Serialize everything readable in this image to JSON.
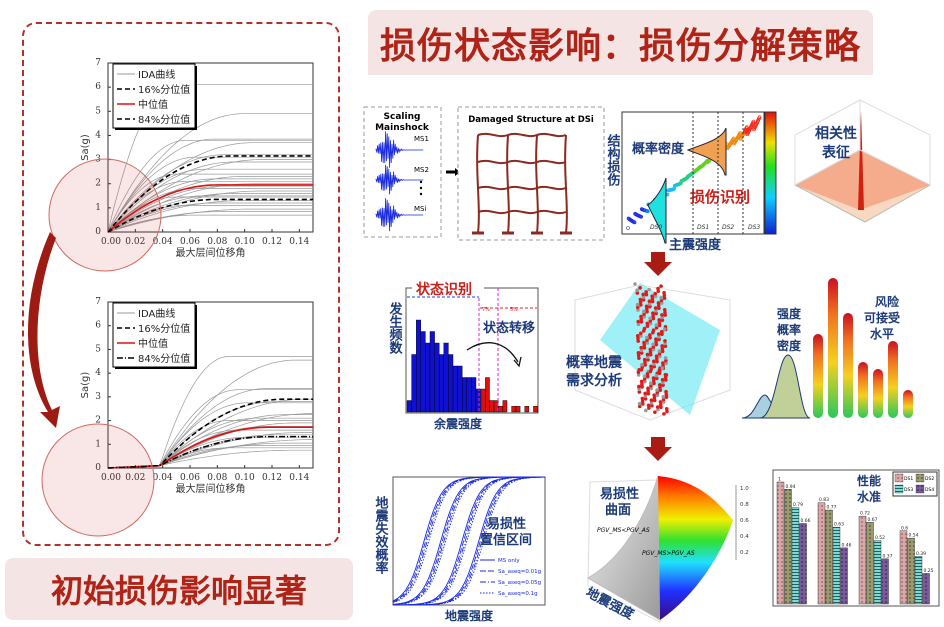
{
  "header": {
    "title": "损伤状态影响：损伤分解策略"
  },
  "footer": {
    "title": "初始损伤影响显著"
  },
  "colors": {
    "accent": "#b02418",
    "banner_bg": "#f5e4e4",
    "navy": "#1d3a78",
    "red": "#c8201a"
  },
  "panels": {
    "mainshock": {
      "title1": "Scaling",
      "title2": "Mainshock",
      "ms1": "MS1",
      "ms2": "MS2",
      "msi": "MSi"
    },
    "structure": {
      "title": "Damaged Structure at DSi"
    },
    "scatter": {
      "ylabel": "结构损伤",
      "density": "概率密度",
      "identify": "损伤识别",
      "xlabel": "主震强度",
      "ds": [
        "DS0",
        "DS1",
        "DS2",
        "DS3"
      ]
    },
    "correlation": {
      "label1": "相关性",
      "label2": "表征"
    },
    "histogram": {
      "title": "状态识别",
      "ylabel": "发生频数",
      "transfer": "状态转移",
      "xlabel": "余震强度",
      "pct1": "7%",
      "pct2": "5%"
    },
    "psda": {
      "label1": "概率地震",
      "label2": "需求分析"
    },
    "risk": {
      "label_a": [
        "强度",
        "概率",
        "密度"
      ],
      "label_b": [
        "风险",
        "可接受",
        "水平"
      ]
    },
    "fragility": {
      "ylabel": "地震失效概率",
      "label1": "易损性",
      "label2": "置信区间",
      "xlabel": "地震强度",
      "legend": [
        "MS only",
        "Sa_aseq=0.01g",
        "Sa_aseq=0.05g",
        "Sa_aseq=0.1g"
      ]
    },
    "surface": {
      "label1": "易损性",
      "label2": "曲面",
      "cond1": "PGV_MS<PGV_AS",
      "cond2": "PGV_MS>PGV_AS",
      "xlabel": "地震强度",
      "zticks": [
        "1.0",
        "0.8",
        "0.6",
        "0.4",
        "0.2"
      ]
    },
    "performance": {
      "label1": "性能",
      "label2": "水准"
    }
  },
  "chart_data": [
    {
      "type": "line",
      "name": "ida-intact",
      "xlabel": "最大层间位移角",
      "ylabel": "Sa(g)",
      "xlim": [
        0,
        0.15
      ],
      "ylim": [
        0,
        7
      ],
      "xticks": [
        "0.00",
        "0.02",
        "0.04",
        "0.06",
        "0.08",
        "0.10",
        "0.12",
        "0.14"
      ],
      "yticks": [
        "0",
        "1",
        "2",
        "3",
        "4",
        "5",
        "6",
        "7"
      ],
      "legend": [
        "IDA曲线",
        "16%分位值",
        "中位值",
        "84%分位值"
      ],
      "legend_placement": "top-left",
      "curve_plateaus": [
        6.1,
        4.9,
        3.85,
        3.8,
        3.7,
        3.2,
        3.1,
        3.0,
        2.9,
        2.6,
        2.4,
        2.3,
        2.2,
        2.1,
        2.0,
        1.9,
        1.8,
        1.7,
        1.6,
        1.5,
        1.45,
        1.3,
        1.2,
        1.1,
        0.95,
        0.85,
        0.7
      ],
      "p16": 3.15,
      "median": 1.95,
      "p84": 1.35,
      "onset": 0.0
    },
    {
      "type": "line",
      "name": "ida-damaged",
      "xlabel": "最大层间位移角",
      "ylabel": "Sa(g)",
      "xlim": [
        0,
        0.15
      ],
      "ylim": [
        0,
        7
      ],
      "xticks": [
        "0.00",
        "0.02",
        "0.04",
        "0.06",
        "0.08",
        "0.10",
        "0.12",
        "0.14"
      ],
      "yticks": [
        "0",
        "1",
        "2",
        "3",
        "4",
        "5",
        "6",
        "7"
      ],
      "legend": [
        "IDA曲线",
        "16%分位值",
        "中位值",
        "84%分位值"
      ],
      "legend_placement": "top-left",
      "curve_plateaus": [
        4.7,
        4.55,
        3.35,
        3.3,
        2.9,
        2.8,
        2.75,
        2.3,
        2.25,
        2.1,
        2.0,
        1.9,
        1.75,
        1.6,
        1.5,
        1.4,
        1.3,
        1.2,
        1.05,
        0.95,
        0.85,
        0.75
      ],
      "p16": 2.9,
      "median": 1.72,
      "p84": 1.32,
      "onset": 0.038
    },
    {
      "type": "bar",
      "name": "performance-levels",
      "legend": [
        "DS1",
        "DS2",
        "DS3",
        "DS4"
      ],
      "series": [
        [
          1,
          0.94,
          0.79,
          0.66
        ],
        [
          0.83,
          0.77,
          0.63,
          0.46
        ],
        [
          0.72,
          0.67,
          0.52,
          0.37
        ],
        [
          0.6,
          0.54,
          0.39,
          0.25
        ]
      ],
      "value_labels": [
        [
          "1",
          "0.94",
          "0.79",
          "0.66"
        ],
        [
          "0.83",
          "0.77",
          "0.63",
          "0.46"
        ],
        [
          "0.72",
          "0.67",
          "0.52",
          "0.37"
        ],
        [
          "0.6",
          "0.54",
          "0.39",
          "0.25"
        ]
      ],
      "ylim": [
        0,
        1
      ]
    },
    {
      "type": "bar",
      "name": "aftershock-histogram",
      "blue": [
        1,
        5,
        8,
        7,
        6,
        7,
        6,
        5,
        6,
        5,
        4,
        4,
        3,
        3,
        3,
        2
      ],
      "red": [
        2,
        3,
        1,
        1,
        0.5,
        1,
        0,
        0.5,
        0.5,
        0,
        0.5,
        0,
        0.5
      ]
    },
    {
      "type": "bar",
      "name": "risk-bars",
      "values": [
        0.6,
        1.0,
        0.75,
        0.4,
        0.35,
        0.55,
        0.2
      ]
    }
  ]
}
